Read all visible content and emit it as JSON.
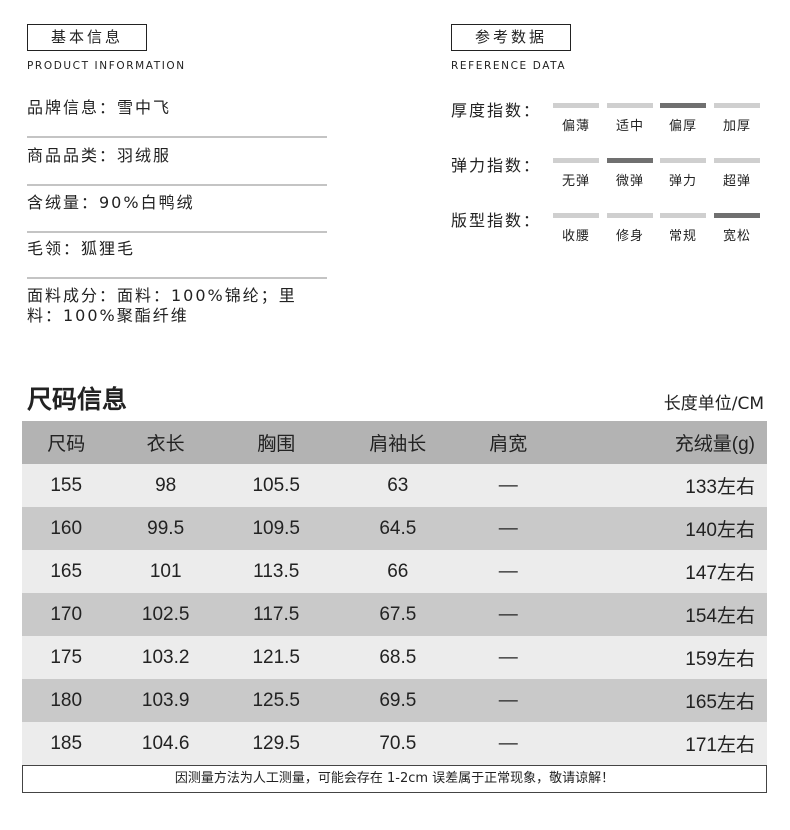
{
  "basic": {
    "title": "基本信息",
    "subtitle": "PRODUCT INFORMATION",
    "items": [
      "品牌信息：雪中飞",
      "商品品类：羽绒服",
      "含绒量：90%白鸭绒",
      "毛领：狐狸毛"
    ],
    "fabric": "面料成分：面料：100%锦纶；里料：100%聚酯纤维"
  },
  "reference": {
    "title": "参考数据",
    "subtitle": "REFERENCE DATA",
    "indices": [
      {
        "label": "厚度指数：",
        "options": [
          "偏薄",
          "适中",
          "偏厚",
          "加厚"
        ],
        "selected": 2
      },
      {
        "label": "弹力指数：",
        "options": [
          "无弹",
          "微弹",
          "弹力",
          "超弹"
        ],
        "selected": 1
      },
      {
        "label": "版型指数：",
        "options": [
          "收腰",
          "修身",
          "常规",
          "宽松"
        ],
        "selected": 3
      }
    ],
    "colors": {
      "active": "#707070",
      "inactive": "#cfcfcf"
    }
  },
  "size": {
    "title": "尺码信息",
    "unit": "长度单位/CM",
    "headers": [
      "尺码",
      "衣长",
      "胸围",
      "肩袖长",
      "肩宽",
      "充绒量(g)"
    ],
    "rows": [
      [
        "155",
        "98",
        "105.5",
        "63",
        "—",
        "133左右"
      ],
      [
        "160",
        "99.5",
        "109.5",
        "64.5",
        "—",
        "140左右"
      ],
      [
        "165",
        "101",
        "113.5",
        "66",
        "—",
        "147左右"
      ],
      [
        "170",
        "102.5",
        "117.5",
        "67.5",
        "—",
        "154左右"
      ],
      [
        "175",
        "103.2",
        "121.5",
        "68.5",
        "—",
        "159左右"
      ],
      [
        "180",
        "103.9",
        "125.5",
        "69.5",
        "—",
        "165左右"
      ],
      [
        "185",
        "104.6",
        "129.5",
        "70.5",
        "—",
        "171左右"
      ]
    ],
    "note": "因测量方法为人工测量，可能会存在 1-2cm 误差属于正常现象，敬请谅解！"
  }
}
